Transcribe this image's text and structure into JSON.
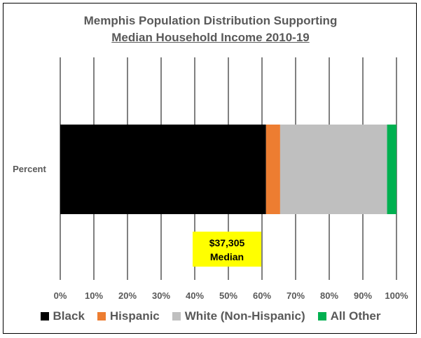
{
  "chart_data": {
    "type": "bar",
    "orientation": "horizontal",
    "stacked": true,
    "title": "Memphis Population Distribution Supporting",
    "subtitle": "Median Household Income 2010-19",
    "categories": [
      "Percent"
    ],
    "series": [
      {
        "name": "Black",
        "values": [
          61.2
        ],
        "color": "#000000"
      },
      {
        "name": "Hispanic",
        "values": [
          4.2
        ],
        "color": "#ED7D31"
      },
      {
        "name": "White (Non-Hispanic)",
        "values": [
          31.8
        ],
        "color": "#BFBFBF"
      },
      {
        "name": "All Other",
        "values": [
          2.8
        ],
        "color": "#00B050"
      }
    ],
    "xlim": [
      0,
      100
    ],
    "xticks": [
      "0%",
      "10%",
      "20%",
      "30%",
      "40%",
      "50%",
      "60%",
      "70%",
      "80%",
      "90%",
      "100%"
    ],
    "grid": true,
    "legend": "bottom",
    "annotation": {
      "line1": "$37,305",
      "line2": "Median",
      "x": 50,
      "color": "#FFFF00"
    }
  }
}
